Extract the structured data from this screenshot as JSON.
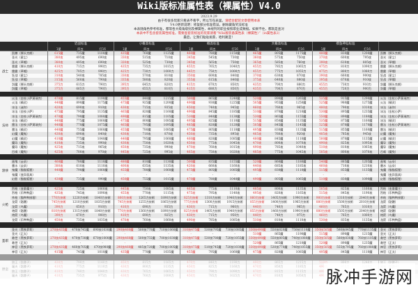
{
  "title": "Wiki版标准属性表（裸属性）V4.0",
  "notes": [
    {
      "text": "2023.9.29",
      "red": ""
    },
    {
      "text": "由于有很多玩家只看表不看字，所以写在表里。",
      "red": "请结合配装文章使用本表"
    },
    {
      "text": "V4.0更新说明：修复部分标准错误，删除藏角奖法标准",
      "red": ""
    },
    {
      "text": "本表随角色参考标准，都等各大级角级别及裸属性，本线列的职业按照职业成数据。如果不住，都就是查对",
      "red": ""
    },
    {
      "text": "",
      "red": "本表中不包含套装属性标准。需要查套装标准的玩家请看“Wiki版装备属性表（裸属性）”（in属性表2）"
    },
    {
      "text": "最后，让我们贴贴发愿，哈利路亚！",
      "red": ""
    }
  ],
  "sections": [
    "近战标准",
    "小概高标准",
    "概高标准",
    "大概高标准",
    "摸鱼神仙标准"
  ],
  "subheaders": [
    "1星",
    "四五",
    "打16"
  ],
  "colors": {
    "header": "#2a2a2a",
    "highlight": "#d33"
  },
  "groups": [
    {
      "label": "战士",
      "rows": [
        [
          "凯撒（狮头克朗）",
          "615魔",
          "735魔",
          "1100魔",
          "435魔",
          "760魔",
          "1125魔",
          "460魔",
          "780魔",
          "1150魔",
          "465魔",
          "805魔",
          "1175魔",
          "480魔",
          "830魔",
          "1200魔"
        ],
        [
          "圣光（星尘）",
          "380攻",
          "495攻",
          "690攻",
          "330攻",
          "515攻",
          "710攻",
          "345攻",
          "545攻",
          "730攻",
          "360攻",
          "575攻",
          "750攻",
          "370攻",
          "600攻",
          "795攻"
        ],
        [
          "圣光（草帽）",
          "380攻",
          "495攻",
          "690攻",
          "320攻",
          "525攻",
          "730攻",
          "345攻",
          "565攻",
          "750攻",
          "365攻",
          "585攻",
          "760攻",
          "390攻",
          "610攻",
          "805攻"
        ],
        [
          "雷霆（狮头克朗）",
          "410力",
          "715力",
          "990力",
          "435力",
          "735力",
          "1015力",
          "455力",
          "765力",
          "1040力",
          "455力",
          "785力",
          "1065力",
          "475力",
          "810力",
          "1090力"
        ],
        [
          "雷霆（草帽）",
          "425力",
          "705力",
          "990力",
          "425力",
          "730力",
          "1000力",
          "445力",
          "750力",
          "1000力",
          "455力",
          "775力",
          "1055力",
          "475力",
          "800力",
          "1080力"
        ],
        [
          "狂战（星尘）",
          "310攻",
          "540攻",
          "785攻",
          "330攻",
          "570攻",
          "810攻",
          "350攻",
          "600攻",
          "840攻",
          "370攻",
          "630攻",
          "870攻",
          "390攻",
          "660攻",
          "900攻"
        ],
        [
          "狂战（草帽）",
          "315攻",
          "560攻",
          "790攻",
          "335攻",
          "580攻",
          "820攻",
          "355攻",
          "615攻",
          "840攻",
          "375攻",
          "640攻",
          "880攻",
          "395攻",
          "670攻",
          "910攻"
        ],
        [
          "剑魔（狮头克朗）",
          "375力",
          "615力",
          "790力",
          "395力",
          "645力",
          "820力",
          "415力",
          "670力",
          "850力",
          "435力",
          "700力",
          "880力",
          "455力",
          "730力",
          "910力"
        ],
        [
          "剑魔（草帽）",
          "375力",
          "665力",
          "790力",
          "395力",
          "655力",
          "810力",
          "415力",
          "680力",
          "850力",
          "435力",
          "700力",
          "870力",
          "455力",
          "720力",
          "900力"
        ]
      ]
    },
    {
      "label": "法师",
      "rows": [
        [
          "火法（金杖小萨莫瑞克）",
          "470魔",
          "815魔",
          "1190魔",
          "455魔",
          "840魔",
          "1215魔",
          "500魔",
          "865魔",
          "1240魔",
          "520魔",
          "890魔",
          "1265魔",
          "535魔",
          "915魔",
          "1290魔"
        ],
        [
          "火法（精灵）",
          "440魔",
          "890魔",
          "1175魔",
          "475魔",
          "925魔",
          "1200魔",
          "490魔",
          "930魔",
          "1225魔",
          "505魔",
          "955魔",
          "1250魔",
          "525魔",
          "980魔",
          "1275魔"
        ],
        [
          "冰法（迷你）",
          "420攻",
          "690攻",
          "910攻",
          "430攻",
          "715攻",
          "935攻",
          "450攻",
          "740攻",
          "945攻",
          "460攻",
          "760攻",
          "965攻",
          "480攻",
          "790攻",
          "1010攻"
        ],
        [
          "冰法（金杖小萨）",
          "475魔",
          "795魔",
          "1135魔",
          "465魔",
          "820魔",
          "1160魔",
          "490魔",
          "845魔",
          "1185魔",
          "510魔",
          "870魔",
          "1210魔",
          "530魔",
          "895魔",
          "1235魔"
        ],
        [
          "冰法（金杖小萨莫瑞克）",
          "470魔",
          "790魔",
          "1080魔",
          "490魔",
          "815魔",
          "1105魔",
          "510魔",
          "840魔",
          "1130魔",
          "530魔",
          "865魔",
          "1155魔",
          "550魔",
          "890魔",
          "1180魔"
        ],
        [
          "冰法（精灵）",
          "440魔",
          "775魔",
          "1060魔",
          "475魔",
          "800魔",
          "1085魔",
          "495魔",
          "825魔",
          "1110魔",
          "515魔",
          "850魔",
          "1135魔",
          "535魔",
          "875魔",
          "1160魔"
        ],
        [
          "雷法（金杖小萨莫瑞克）",
          "440魔",
          "770魔",
          "1075魔",
          "465魔",
          "795魔",
          "1095魔",
          "485魔",
          "820魔",
          "1120魔",
          "505魔",
          "845魔",
          "1145魔",
          "525魔",
          "870魔",
          "1170魔"
        ],
        [
          "雷法（精灵）",
          "440魔",
          "755魔",
          "1060魔",
          "455魔",
          "780魔",
          "1085魔",
          "475魔",
          "805魔",
          "1110魔",
          "495魔",
          "830魔",
          "1135魔",
          "515魔",
          "855魔",
          "1160魔"
        ],
        [
          "幻魔（魔鬼）",
          "430攻",
          "690攻",
          "840攻",
          "430攻",
          "710攻",
          "870攻",
          "450攻",
          "735攻",
          "895攻",
          "465攻",
          "760攻",
          "920攻",
          "485攻",
          "785攻",
          "945攻"
        ],
        [
          "幻魔（精灵）",
          "410魔",
          "775魔",
          "1040魔",
          "440魔",
          "795魔",
          "1060魔",
          "460魔",
          "820魔",
          "1085魔",
          "480魔",
          "845魔",
          "1110魔",
          "500魔",
          "870魔",
          "1135魔"
        ],
        [
          "魔导（魔兔）",
          "410攻",
          "735攻",
          "990攻",
          "430攻",
          "750攻",
          "1020攻",
          "450攻",
          "775攻",
          "1045攻",
          "470攻",
          "800攻",
          "1070攻",
          "490攻",
          "825攻",
          "1095攻"
        ],
        [
          "魔导（魔鬼）",
          "425攻",
          "715攻",
          "965攻",
          "450攻",
          "735攻",
          "990攻",
          "470攻",
          "760攻",
          "1015攻",
          "490攻",
          "785攻",
          "1040攻",
          "510攻",
          "810攻",
          "1065攻"
        ],
        [
          "召唤（魔兔）",
          "425攻",
          "700攻",
          "970攻",
          "445攻",
          "725攻",
          "995攻",
          "465攻",
          "750攻",
          "1020攻",
          "485攻",
          "775攻",
          "1045攻",
          "505攻",
          "800攻",
          "1070攻"
        ]
      ]
    },
    {
      "label": "游侠",
      "rows": [
        [
          "画笔（云朵）",
          "460魔",
          "780魔",
          "1110魔",
          "480魔",
          "810魔",
          "1130魔",
          "500魔",
          "835魔",
          "1155魔",
          "520魔",
          "860魔",
          "1180魔",
          "540魔",
          "885魔",
          "1205魔"
        ],
        [
          "墨水（云朵）",
          "380攻",
          "610攻",
          "1110攻",
          "400攻",
          "635攻",
          "1135攻",
          "420攻",
          "660攻",
          "1160攻",
          "440攻",
          "685攻",
          "1185攻",
          "460攻",
          "710攻",
          "1210攻"
        ],
        [
          "鬼魔（猫猫狐狸）",
          "440魔",
          "790魔",
          "1060魔",
          "455魔",
          "780魔",
          "1060魔",
          "475魔",
          "805魔",
          "1085魔",
          "495魔",
          "830魔",
          "1110魔",
          "515魔",
          "855魔",
          "1135魔"
        ],
        [
          "鬼魔（变异面具）",
          "-",
          "-",
          "-",
          "-",
          "-",
          "-",
          "-",
          "-",
          "-",
          "-",
          "-",
          "-",
          "-",
          "-",
          "-"
        ],
        [
          "幻影（猫猫狐狸）",
          "430魔",
          "735魔",
          "990魔",
          "450魔",
          "755魔",
          "1015魔",
          "470魔",
          "780魔",
          "1040魔",
          "490魔",
          "805魔",
          "1065魔",
          "510魔",
          "830魔",
          "1090魔"
        ]
      ]
    },
    {
      "label": "火枪",
      "rows": [
        [
          "烈枪（变量魔主）",
          "425攻",
          "725攻",
          "1060攻",
          "445攻",
          "750攻",
          "1085攻",
          "465攻",
          "775攻",
          "1110攻",
          "485攻",
          "800攻",
          "1135攻",
          "505攻",
          "825攻",
          "1160攻"
        ],
        [
          "烈枪（乐鸭鸭盘）",
          "435攻",
          "745攻",
          "1090攻",
          "455攻",
          "770攻",
          "1115攻",
          "475攻",
          "795攻",
          "1140攻",
          "495攻",
          "820攻",
          "1165攻",
          "515攻",
          "845攻",
          "1190攻"
        ],
        [
          "杀枪（猫鸭鸭接客）",
          "770力技術",
          "1220力技術",
          "1840力技術",
          "800力技術",
          "1265力技術",
          "1890力技術",
          "825力技術",
          "1310力技術",
          "1940力技術",
          "860力技術",
          "1405力技術",
          "1990力技術",
          "900力技術",
          "1310力技術",
          "2040力技術"
        ],
        [
          "龙箭（骷髅）",
          "745力技術",
          "1210力技術",
          "1835力技術",
          "745力技術",
          "1255力技術",
          "1865力技術",
          "775力技術",
          "1300力技術",
          "1915力技術",
          "855力技術",
          "1400力技術",
          "1965力技術",
          "880力技術",
          "1500力技術",
          "2010力技術"
        ],
        [
          "龙箭（鸟魔）",
          "390力",
          "650力",
          "910力",
          "410力",
          "690力",
          "935力",
          "430力",
          "715力",
          "960力",
          "440力",
          "740力",
          "985力",
          "460力",
          "765力",
          "1010力"
        ],
        [
          "炮箭（骷髅）",
          "810力技術",
          "1315力技術",
          "1840力技術",
          "770力技術",
          "1360力技術",
          "1890力技術",
          "825力技術",
          "1405力技術",
          "1940力技術",
          "855力技術",
          "1460力技術",
          "1990力技術",
          "880力技術",
          "1505力技術",
          "2040力技術"
        ],
        [
          "炮箭（鸟魔）",
          "390力",
          "670力",
          "900力",
          "410力",
          "690力",
          "925力",
          "430力",
          "715力",
          "950力",
          "440力",
          "740力",
          "975力",
          "460力",
          "765力",
          "1000力"
        ],
        [
          "龙箭（乐鸭鸭盘）",
          "450攻",
          "735攻",
          "1035攻",
          "470攻",
          "760攻",
          "1060攻",
          "490攻",
          "785攻",
          "1085攻",
          "510攻",
          "810攻",
          "1110攻",
          "530攻",
          "835攻",
          "1135攻"
        ]
      ]
    },
    {
      "label": "圣职",
      "rows": [
        [
          "圣光（黑铁萝莉）",
          "270技435魔",
          "470技745魔",
          "690技1030魔",
          "290技460魔",
          "500技770魔",
          "710技1060魔",
          "310技475魔",
          "530技795魔",
          "730技1085魔",
          "330技490魔",
          "550技820魔",
          "750技1110魔",
          "350技505魔",
          "580技845魔",
          "770技1135魔"
        ],
        [
          "圣光（正太）",
          "-",
          "-",
          "-",
          "-",
          "-",
          "-",
          "-",
          "-",
          "-",
          "510魔",
          "865魔",
          "1190魔",
          "515魔",
          "890魔",
          "1215魔"
        ],
        [
          "救世（黑铁萝莉）",
          "270技435魔",
          "470技730魔",
          "670技1000魔",
          "290技460魔",
          "500技755魔",
          "700技1030魔",
          "310技475魔",
          "530技780魔",
          "720技1055魔",
          "330技490魔",
          "550技805魔",
          "740技1080魔",
          "350技505魔",
          "580技830魔",
          "760技1105魔"
        ],
        [
          "救世（正太）",
          "-",
          "-",
          "-",
          "-",
          "-",
          "-",
          "-",
          "-",
          "-",
          "520魔",
          "865魔",
          "1210魔",
          "520魔",
          "890魔",
          "1235魔"
        ],
        [
          "神官（黑铁萝莉）",
          "270技435魔",
          "460技705魔",
          "670技980魔",
          "290技460魔",
          "485技720魔",
          "700技1005魔",
          "310技475魔",
          "510技745魔",
          "720技1030魔",
          "330技490魔",
          "530技770魔",
          "740技1055魔",
          "350技505魔",
          "555技795魔",
          "760技1080魔"
        ],
        [
          "神官（正太）",
          "415魔",
          "745魔",
          "1010魔",
          "435魔",
          "770魔",
          "1035魔",
          "455魔",
          "795魔",
          "1060魔",
          "475魔",
          "820魔",
          "1085魔",
          "495魔",
          "845魔",
          "1110魔"
        ]
      ]
    },
    {
      "label": "野蛮",
      "faded": true,
      "rows": [
        [
          "狼王（骷髅子）",
          "430力",
          "790力",
          "1140力",
          "450力",
          "815力",
          "1165力",
          "470力",
          "840力",
          "1190力",
          "490力",
          "865力",
          "1215力",
          "510力",
          "890力",
          "1240力"
        ],
        [
          "屠夫（骷髅子）",
          "410力",
          "775力",
          "1110力",
          "430力",
          "800力",
          "1135力",
          "450力",
          "825力",
          "1160力",
          "470力",
          "850力",
          "1185力",
          "490力",
          "875力",
          "1210力"
        ],
        [
          "狼王（骷髅子）",
          "410力",
          "740力",
          "1040力",
          "430力",
          "765力",
          "1065力",
          "450力",
          "790力",
          "1090力",
          "470力",
          "815力",
          "1115力",
          "490力",
          "840力",
          "1140力"
        ],
        [
          "屠夫（骷髅子）",
          "410力",
          "735力",
          "975力",
          "430力",
          "760力",
          "1000力",
          "450力",
          "785力",
          "1025力",
          "470力",
          "810力",
          "1050力",
          "490力",
          "835力",
          "1075力"
        ]
      ]
    }
  ],
  "watermark": "脉冲手游网"
}
